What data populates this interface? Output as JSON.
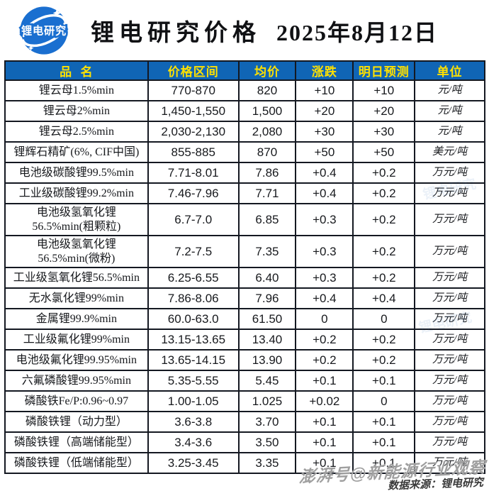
{
  "header": {
    "logo_text": "锂电研究",
    "title": "锂电研究价格",
    "date": "2025年8月12日"
  },
  "table": {
    "columns": [
      {
        "key": "name",
        "label": "品  名"
      },
      {
        "key": "range",
        "label": "价格区间"
      },
      {
        "key": "avg",
        "label": "均价"
      },
      {
        "key": "change",
        "label": "涨跌"
      },
      {
        "key": "forecast",
        "label": "明日预测"
      },
      {
        "key": "unit",
        "label": "单位"
      }
    ],
    "rows": [
      {
        "name": "锂云母1.5%min",
        "range": "770-870",
        "avg": "820",
        "change": "+10",
        "forecast": "+10",
        "unit": "元/吨"
      },
      {
        "name": "锂云母2%min",
        "range": "1,450-1,550",
        "avg": "1,500",
        "change": "+20",
        "forecast": "+20",
        "unit": "元/吨"
      },
      {
        "name": "锂云母2.5%min",
        "range": "2,030-2,130",
        "avg": "2,080",
        "change": "+30",
        "forecast": "+30",
        "unit": "元/吨"
      },
      {
        "name": "锂辉石精矿(6%, CIF中国)",
        "range": "855-885",
        "avg": "870",
        "change": "+50",
        "forecast": "+50",
        "unit": "美元/吨"
      },
      {
        "name": "电池级碳酸锂99.5%min",
        "range": "7.71-8.01",
        "avg": "7.86",
        "change": "+0.4",
        "forecast": "+0.2",
        "unit": "万元/吨"
      },
      {
        "name": "工业级碳酸锂99.2%min",
        "range": "7.46-7.96",
        "avg": "7.71",
        "change": "+0.4",
        "forecast": "+0.2",
        "unit": "万元/吨"
      },
      {
        "name": "电池级氢氧化锂\n56.5%min(粗颗粒)",
        "range": "6.7-7.0",
        "avg": "6.85",
        "change": "+0.3",
        "forecast": "+0.2",
        "unit": "万元/吨"
      },
      {
        "name": "电池级氢氧化锂\n56.5%min(微粉)",
        "range": "7.2-7.5",
        "avg": "7.35",
        "change": "+0.3",
        "forecast": "+0.2",
        "unit": "万元/吨"
      },
      {
        "name": "工业级氢氧化锂56.5%min",
        "range": "6.25-6.55",
        "avg": "6.40",
        "change": "+0.3",
        "forecast": "+0.2",
        "unit": "万元/吨"
      },
      {
        "name": "无水氯化锂99%min",
        "range": "7.86-8.06",
        "avg": "7.96",
        "change": "+0.4",
        "forecast": "+0.4",
        "unit": "万元/吨"
      },
      {
        "name": "金属锂99.9%min",
        "range": "60.0-63.0",
        "avg": "61.50",
        "change": "0",
        "forecast": "0",
        "unit": "万元/吨"
      },
      {
        "name": "工业级氟化锂99%min",
        "range": "13.15-13.65",
        "avg": "13.40",
        "change": "+0.2",
        "forecast": "+0.2",
        "unit": "万元/吨"
      },
      {
        "name": "电池级氟化锂99.95%min",
        "range": "13.65-14.15",
        "avg": "13.90",
        "change": "+0.2",
        "forecast": "+0.2",
        "unit": "万元/吨"
      },
      {
        "name": "六氟磷酸锂99.95%min",
        "range": "5.35-5.55",
        "avg": "5.45",
        "change": "+0.1",
        "forecast": "+0.1",
        "unit": "万元/吨"
      },
      {
        "name": "磷酸铁Fe/P:0.96~0.97",
        "range": "1.00-1.05",
        "avg": "1.025",
        "change": "+0.02",
        "forecast": "0",
        "unit": "万元/吨"
      },
      {
        "name": "磷酸铁锂（动力型）",
        "range": "3.6-3.8",
        "avg": "3.70",
        "change": "+0.1",
        "forecast": "+0.1",
        "unit": "万元/吨"
      },
      {
        "name": "磷酸铁锂（高端储能型）",
        "range": "3.4-3.6",
        "avg": "3.50",
        "change": "+0.1",
        "forecast": "+0.1",
        "unit": "万元/吨"
      },
      {
        "name": "磷酸铁锂（低端储能型）",
        "range": "3.25-3.45",
        "avg": "3.35",
        "change": "+0.1",
        "forecast": "+0.1",
        "unit": "万元/吨"
      }
    ]
  },
  "footer": {
    "platform_watermark": "澎湃号@新能源行业观察",
    "source": "数据来源：锂电研究"
  },
  "faint_watermark_text": "锂电研究",
  "colors": {
    "header_bg": "#1065b5",
    "header_text": "#ffe100",
    "logo_blue": "#1a6fd0",
    "grid": "#141821",
    "body_text": "#17191d",
    "watermark_gray": "#9f9f9f",
    "source_text": "#3a3a3a"
  }
}
